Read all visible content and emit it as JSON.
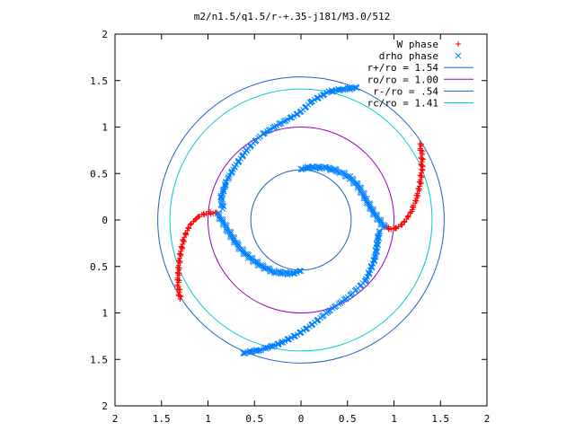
{
  "chart_data": {
    "type": "scatter",
    "title": "m2/n1.5/q1.5/r-+.35-j181/M3.0/512",
    "xlabel": "",
    "ylabel": "",
    "xlim": [
      -2,
      2
    ],
    "ylim": [
      -2,
      2
    ],
    "x_ticks": [
      -2,
      -1.5,
      -1,
      -0.5,
      0,
      0.5,
      1,
      1.5,
      2
    ],
    "y_ticks": [
      -2,
      -1.5,
      -1,
      -0.5,
      0,
      0.5,
      1,
      1.5,
      2
    ],
    "x_tick_labels": [
      "2",
      "1.5",
      "1",
      "0.5",
      "0",
      "0.5",
      "1",
      "1.5",
      "2"
    ],
    "y_tick_labels": [
      "2",
      "1.5",
      "1",
      "0.5",
      "0",
      "0.5",
      "1",
      "1.5",
      "2"
    ],
    "grid": false,
    "legend_position": "top-right",
    "series": [
      {
        "name": "W phase",
        "marker": "plus",
        "color": "#ff0000",
        "segments": [
          [
            [
              1.28,
              0.82
            ],
            [
              1.3,
              0.7
            ],
            [
              1.3,
              0.55
            ],
            [
              1.28,
              0.38
            ],
            [
              1.24,
              0.22
            ],
            [
              1.18,
              0.08
            ],
            [
              1.1,
              -0.04
            ],
            [
              1.0,
              -0.1
            ],
            [
              0.9,
              -0.08
            ]
          ],
          [
            [
              -1.3,
              -0.85
            ],
            [
              -1.32,
              -0.72
            ],
            [
              -1.32,
              -0.56
            ],
            [
              -1.3,
              -0.38
            ],
            [
              -1.26,
              -0.2
            ],
            [
              -1.2,
              -0.06
            ],
            [
              -1.1,
              0.04
            ],
            [
              -1.0,
              0.08
            ],
            [
              -0.9,
              0.07
            ]
          ]
        ]
      },
      {
        "name": "drho phase",
        "marker": "cross",
        "color": "#0080ff",
        "segments": [
          [
            [
              0.9,
              -0.08
            ],
            [
              0.84,
              0.0
            ],
            [
              0.78,
              0.08
            ],
            [
              0.7,
              0.22
            ],
            [
              0.62,
              0.36
            ],
            [
              0.52,
              0.46
            ],
            [
              0.4,
              0.53
            ],
            [
              0.26,
              0.56
            ],
            [
              0.1,
              0.57
            ],
            [
              0.0,
              0.55
            ]
          ],
          [
            [
              -0.9,
              0.07
            ],
            [
              -0.84,
              -0.02
            ],
            [
              -0.78,
              -0.12
            ],
            [
              -0.68,
              -0.28
            ],
            [
              -0.56,
              -0.4
            ],
            [
              -0.42,
              -0.5
            ],
            [
              -0.28,
              -0.56
            ],
            [
              -0.1,
              -0.58
            ],
            [
              0.0,
              -0.55
            ]
          ],
          [
            [
              -0.84,
              0.12
            ],
            [
              -0.86,
              0.24
            ],
            [
              -0.8,
              0.42
            ],
            [
              -0.72,
              0.56
            ],
            [
              -0.58,
              0.76
            ],
            [
              -0.42,
              0.92
            ],
            [
              -0.22,
              1.04
            ],
            [
              -0.02,
              1.15
            ],
            [
              0.12,
              1.28
            ],
            [
              0.3,
              1.38
            ],
            [
              0.45,
              1.41
            ],
            [
              0.6,
              1.42
            ]
          ],
          [
            [
              0.84,
              -0.12
            ],
            [
              0.8,
              -0.4
            ],
            [
              0.7,
              -0.65
            ],
            [
              0.52,
              -0.82
            ],
            [
              0.3,
              -0.98
            ],
            [
              0.1,
              -1.14
            ],
            [
              -0.05,
              -1.24
            ],
            [
              -0.25,
              -1.34
            ],
            [
              -0.45,
              -1.4
            ],
            [
              -0.62,
              -1.43
            ]
          ]
        ]
      },
      {
        "name": "r+/ro = 1.54",
        "type": "circle",
        "radius": 1.54,
        "color": "#1a5fc8"
      },
      {
        "name": "ro/ro = 1.00",
        "type": "circle",
        "radius": 1.0,
        "color": "#9900bb"
      },
      {
        "name": "r-/ro = .54",
        "type": "circle",
        "radius": 0.54,
        "color": "#1a5fc8"
      },
      {
        "name": "rc/ro = 1.41",
        "type": "circle",
        "radius": 1.41,
        "color": "#00cccc"
      }
    ]
  }
}
